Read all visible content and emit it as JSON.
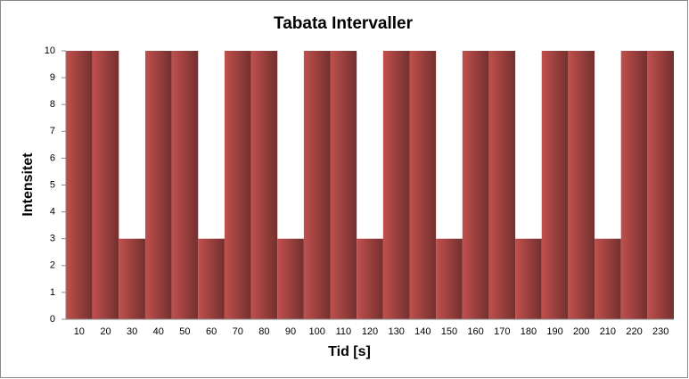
{
  "chart_data": {
    "type": "bar",
    "title": "Tabata Intervaller",
    "x_label": "Tid [s]",
    "y_label": "Intensitet",
    "categories": [
      "10",
      "20",
      "30",
      "40",
      "50",
      "60",
      "70",
      "80",
      "90",
      "100",
      "110",
      "120",
      "130",
      "140",
      "150",
      "160",
      "170",
      "180",
      "190",
      "200",
      "210",
      "220",
      "230"
    ],
    "values": [
      10,
      10,
      3,
      10,
      10,
      3,
      10,
      10,
      3,
      10,
      10,
      3,
      10,
      10,
      3,
      10,
      10,
      3,
      10,
      10,
      3,
      10,
      10
    ],
    "color": "#c0504d",
    "ylim": [
      0,
      10
    ],
    "yticks": [
      0,
      1,
      2,
      3,
      4,
      5,
      6,
      7,
      8,
      9,
      10
    ],
    "grid": false
  }
}
